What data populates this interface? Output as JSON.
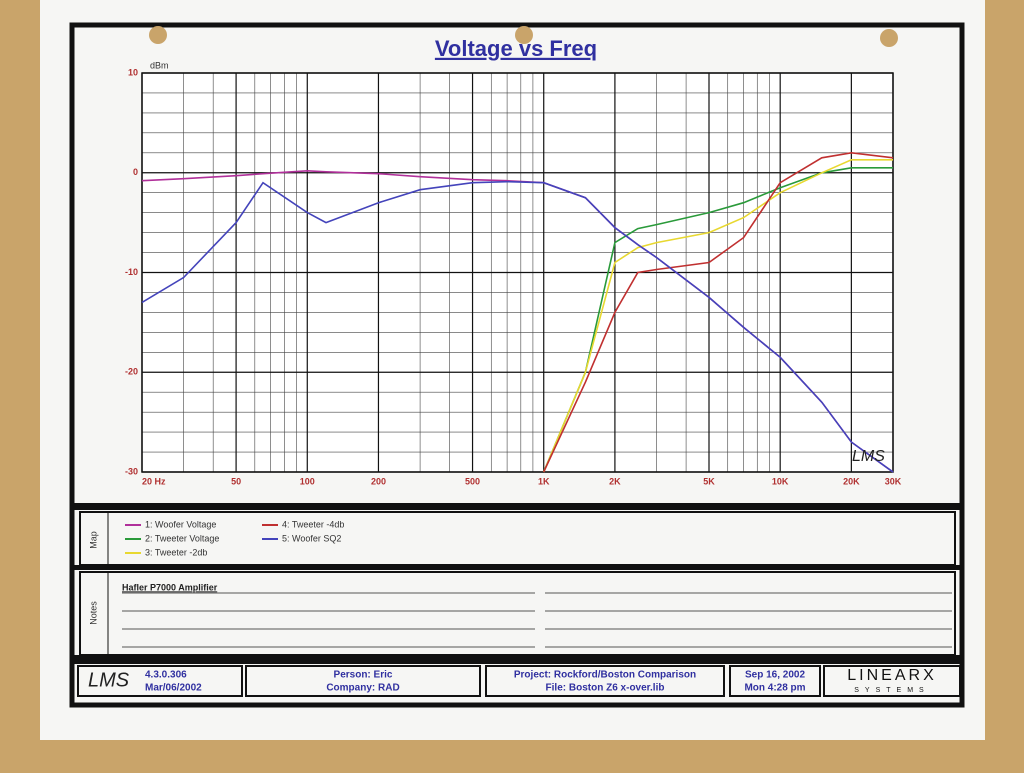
{
  "chart_data": {
    "type": "line",
    "title": "Voltage vs Freq",
    "y_label": "dBm",
    "annotation": "LMS",
    "x_log": true,
    "grid": true,
    "x": [
      20,
      30,
      50,
      65,
      100,
      120,
      200,
      300,
      500,
      700,
      1000,
      1500,
      2000,
      2500,
      3000,
      5000,
      7000,
      10000,
      15000,
      20000,
      30000
    ],
    "series": [
      {
        "name": "1: Woofer Voltage",
        "color": "#b0309a",
        "values": [
          -0.8,
          -0.6,
          -0.3,
          -0.1,
          0.2,
          0.1,
          -0.1,
          -0.4,
          -0.7,
          -0.8,
          -1,
          -2.5,
          -5.5,
          -7.2,
          -8.5,
          -12.5,
          -15.5,
          -18.5,
          -23,
          -27,
          -30
        ]
      },
      {
        "name": "2: Tweeter Voltage",
        "color": "#2a9a3a",
        "values": [
          null,
          null,
          null,
          null,
          null,
          null,
          null,
          null,
          null,
          null,
          -30,
          -20,
          -7,
          -5.6,
          -5.2,
          -4,
          -3,
          -1.5,
          0,
          0.5,
          0.5
        ]
      },
      {
        "name": "3: Tweeter -2db",
        "color": "#e8d830",
        "values": [
          null,
          null,
          null,
          null,
          null,
          null,
          null,
          null,
          null,
          null,
          -30,
          -20,
          -9,
          -7.5,
          -7,
          -6,
          -4.5,
          -2,
          0,
          1.3,
          1.3
        ]
      },
      {
        "name": "4: Tweeter -4db",
        "color": "#c03030",
        "values": [
          null,
          null,
          null,
          null,
          null,
          null,
          null,
          null,
          null,
          null,
          -30,
          -21,
          -14,
          -10,
          -9.7,
          -9,
          -6.5,
          -1,
          1.5,
          2,
          1.5
        ]
      },
      {
        "name": "5: Woofer SQ2",
        "color": "#4444bb",
        "values": [
          -13,
          -10.5,
          -5,
          -1,
          -4,
          -5,
          -3,
          -1.7,
          -1,
          -0.9,
          -1,
          -2.5,
          -5.5,
          -7.2,
          -8.5,
          -12.5,
          -15.5,
          -18.5,
          -23,
          -27,
          -30
        ]
      }
    ],
    "xlim": [
      20,
      30000
    ],
    "ylim": [
      -30,
      10
    ],
    "xticks": [
      {
        "value": 20,
        "label": "20 Hz"
      },
      50,
      100,
      200,
      500,
      {
        "value": 1000,
        "label": "1K"
      },
      {
        "value": 2000,
        "label": "2K"
      },
      {
        "value": 5000,
        "label": "5K"
      },
      {
        "value": 10000,
        "label": "10K"
      },
      {
        "value": 20000,
        "label": "20K"
      },
      {
        "value": 30000,
        "label": "30K"
      }
    ],
    "yticks": [
      10,
      0,
      -10,
      -20,
      -30
    ],
    "x_minor_grid": [
      30,
      40,
      60,
      70,
      80,
      90,
      300,
      400,
      600,
      700,
      800,
      900,
      3000,
      4000,
      6000,
      7000,
      8000,
      9000
    ],
    "y_minor_grid": [
      8,
      6,
      4,
      2,
      -2,
      -4,
      -6,
      -8,
      -12,
      -14,
      -16,
      -18,
      -22,
      -24,
      -26,
      -28
    ]
  },
  "sheet": {
    "map_label": "Map",
    "notes_label": "Notes",
    "notes_text": "Hafler P7000 Amplifier",
    "logo": "LMS",
    "version": "4.3.0.306",
    "version_date": "Mar/06/2002",
    "person": "Person: Eric",
    "company": "Company: RAD",
    "project": "Project: Rockford/Boston Comparison",
    "file": "File: Boston Z6 x-over.lib",
    "date": "Sep 16, 2002",
    "time": "Mon  4:28 pm",
    "brand": "LINEARX",
    "brand_sub": "SYSTEMS"
  }
}
